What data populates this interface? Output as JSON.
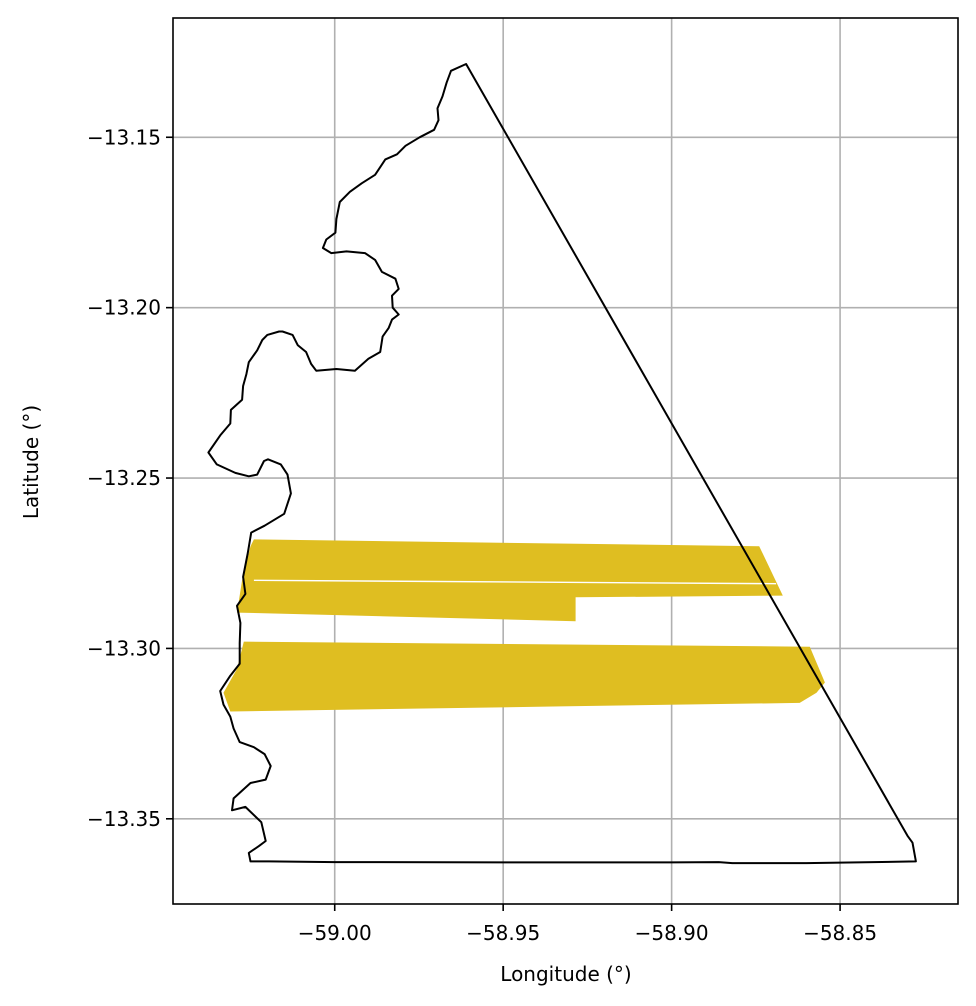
{
  "map": {
    "xlabel": "Longitude (°)",
    "ylabel": "Latitude (°)",
    "xlim": [
      -59.048,
      -58.815
    ],
    "ylim": [
      -13.375,
      -13.115
    ],
    "grid": true,
    "x_ticks": [
      {
        "value": -59.0,
        "label": "−59.00"
      },
      {
        "value": -58.95,
        "label": "−58.95"
      },
      {
        "value": -58.9,
        "label": "−58.90"
      },
      {
        "value": -58.85,
        "label": "−58.85"
      }
    ],
    "y_ticks": [
      {
        "value": -13.15,
        "label": "−13.15"
      },
      {
        "value": -13.2,
        "label": "−13.20"
      },
      {
        "value": -13.25,
        "label": "−13.25"
      },
      {
        "value": -13.3,
        "label": "−13.30"
      },
      {
        "value": -13.35,
        "label": "−13.35"
      }
    ],
    "colors": {
      "boundary": "#000000",
      "fields": "#dfbe21",
      "grid": "#b0b0b0"
    },
    "boundary": [
      [
        -58.961,
        -13.1285
      ],
      [
        -58.9655,
        -13.1305
      ],
      [
        -58.9668,
        -13.134
      ],
      [
        -58.968,
        -13.138
      ],
      [
        -58.9695,
        -13.1415
      ],
      [
        -58.9692,
        -13.145
      ],
      [
        -58.9705,
        -13.1478
      ],
      [
        -58.9748,
        -13.15
      ],
      [
        -58.979,
        -13.1525
      ],
      [
        -58.9815,
        -13.155
      ],
      [
        -58.985,
        -13.1565
      ],
      [
        -58.988,
        -13.161
      ],
      [
        -58.992,
        -13.1635
      ],
      [
        -58.9955,
        -13.166
      ],
      [
        -58.9985,
        -13.169
      ],
      [
        -58.9995,
        -13.174
      ],
      [
        -58.9998,
        -13.178
      ],
      [
        -59.0025,
        -13.18
      ],
      [
        -59.0035,
        -13.1825
      ],
      [
        -59.001,
        -13.184
      ],
      [
        -58.9965,
        -13.1835
      ],
      [
        -58.991,
        -13.184
      ],
      [
        -58.988,
        -13.186
      ],
      [
        -58.986,
        -13.1895
      ],
      [
        -58.982,
        -13.1915
      ],
      [
        -58.981,
        -13.1945
      ],
      [
        -58.983,
        -13.1965
      ],
      [
        -58.9828,
        -13.2
      ],
      [
        -58.981,
        -13.202
      ],
      [
        -58.983,
        -13.2035
      ],
      [
        -58.984,
        -13.206
      ],
      [
        -58.9858,
        -13.2085
      ],
      [
        -58.9865,
        -13.213
      ],
      [
        -58.99,
        -13.215
      ],
      [
        -58.994,
        -13.2185
      ],
      [
        -58.9995,
        -13.218
      ],
      [
        -59.0055,
        -13.2185
      ],
      [
        -59.007,
        -13.2165
      ],
      [
        -59.0085,
        -13.213
      ],
      [
        -59.011,
        -13.211
      ],
      [
        -59.0125,
        -13.208
      ],
      [
        -59.0155,
        -13.207
      ],
      [
        -59.0165,
        -13.207
      ],
      [
        -59.02,
        -13.208
      ],
      [
        -59.0215,
        -13.2095
      ],
      [
        -59.023,
        -13.2125
      ],
      [
        -59.0255,
        -13.216
      ],
      [
        -59.0262,
        -13.2195
      ],
      [
        -59.0272,
        -13.223
      ],
      [
        -59.0275,
        -13.227
      ],
      [
        -59.0308,
        -13.23
      ],
      [
        -59.031,
        -13.234
      ],
      [
        -59.034,
        -13.2375
      ],
      [
        -59.0375,
        -13.2425
      ],
      [
        -59.035,
        -13.246
      ],
      [
        -59.0295,
        -13.2485
      ],
      [
        -59.0255,
        -13.2495
      ],
      [
        -59.023,
        -13.249
      ],
      [
        -59.021,
        -13.245
      ],
      [
        -59.0198,
        -13.2445
      ],
      [
        -59.016,
        -13.246
      ],
      [
        -59.014,
        -13.249
      ],
      [
        -59.013,
        -13.2545
      ],
      [
        -59.015,
        -13.2605
      ],
      [
        -59.0208,
        -13.264
      ],
      [
        -59.0248,
        -13.266
      ],
      [
        -59.0258,
        -13.272
      ],
      [
        -59.0272,
        -13.279
      ],
      [
        -59.0265,
        -13.284
      ],
      [
        -59.029,
        -13.2875
      ],
      [
        -59.028,
        -13.2925
      ],
      [
        -59.0282,
        -13.2985
      ],
      [
        -59.0282,
        -13.3045
      ],
      [
        -59.031,
        -13.308
      ],
      [
        -59.034,
        -13.3125
      ],
      [
        -59.033,
        -13.3165
      ],
      [
        -59.031,
        -13.32
      ],
      [
        -59.03,
        -13.3235
      ],
      [
        -59.0282,
        -13.3275
      ],
      [
        -59.024,
        -13.329
      ],
      [
        -59.0208,
        -13.331
      ],
      [
        -59.019,
        -13.3345
      ],
      [
        -59.0205,
        -13.3385
      ],
      [
        -59.025,
        -13.3395
      ],
      [
        -59.03,
        -13.344
      ],
      [
        -59.0305,
        -13.3475
      ],
      [
        -59.0265,
        -13.3465
      ],
      [
        -59.0218,
        -13.351
      ],
      [
        -59.0205,
        -13.3565
      ],
      [
        -59.0225,
        -13.358
      ],
      [
        -59.0255,
        -13.36
      ],
      [
        -59.025,
        -13.3625
      ],
      [
        -59.0195,
        -13.3625
      ],
      [
        -59.0,
        -13.3627
      ],
      [
        -58.95,
        -13.3628
      ],
      [
        -58.9,
        -13.3628
      ],
      [
        -58.886,
        -13.3627
      ],
      [
        -58.882,
        -13.363
      ],
      [
        -58.86,
        -13.363
      ],
      [
        -58.84,
        -13.3627
      ],
      [
        -58.8275,
        -13.3625
      ],
      [
        -58.8285,
        -13.357
      ],
      [
        -58.83,
        -13.355
      ],
      [
        -58.961,
        -13.1285
      ]
    ],
    "fields": [
      [
        [
          -59.024,
          -13.268
        ],
        [
          -58.874,
          -13.27
        ],
        [
          -58.867,
          -13.2845
        ],
        [
          -58.9285,
          -13.285
        ],
        [
          -58.9285,
          -13.292
        ],
        [
          -59.029,
          -13.2895
        ],
        [
          -59.0275,
          -13.28
        ],
        [
          -59.025,
          -13.27
        ]
      ],
      [
        [
          -59.027,
          -13.298
        ],
        [
          -58.859,
          -13.2995
        ],
        [
          -58.8545,
          -13.31
        ],
        [
          -58.857,
          -13.313
        ],
        [
          -58.862,
          -13.316
        ],
        [
          -58.933,
          -13.317
        ],
        [
          -59.031,
          -13.3185
        ],
        [
          -59.033,
          -13.313
        ],
        [
          -59.029,
          -13.306
        ]
      ]
    ],
    "field_gaps": [
      [
        [
          -59.024,
          -13.28
        ],
        [
          -58.869,
          -13.281
        ]
      ]
    ]
  }
}
